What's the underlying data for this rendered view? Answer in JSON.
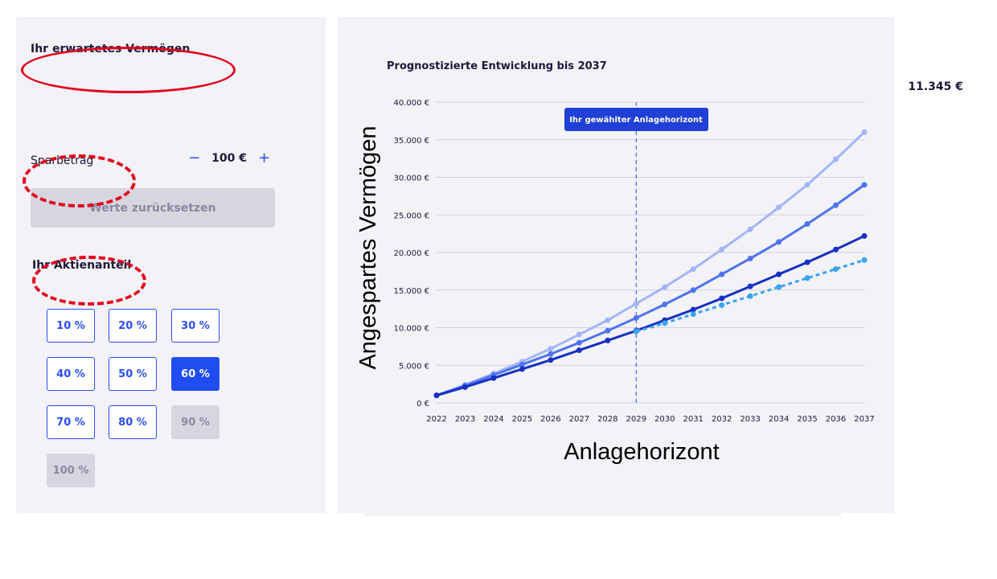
{
  "left": {
    "wealth_heading": "Ihr erwartetes Vermögen",
    "wealth_value": "11.345 €",
    "savings_label": "Sparbetrag",
    "savings_minus": "−",
    "savings_value": "100 €",
    "savings_plus": "+",
    "reset_label": "Werte zurücksetzen",
    "share_heading": "Ihr Aktienanteil",
    "shares": [
      {
        "label": "10 %",
        "state": "normal"
      },
      {
        "label": "20 %",
        "state": "normal"
      },
      {
        "label": "30 %",
        "state": "normal"
      },
      {
        "label": "40 %",
        "state": "normal"
      },
      {
        "label": "50 %",
        "state": "normal"
      },
      {
        "label": "60 %",
        "state": "selected"
      },
      {
        "label": "70 %",
        "state": "normal"
      },
      {
        "label": "80 %",
        "state": "normal"
      },
      {
        "label": "90 %",
        "state": "disabled"
      },
      {
        "label": "100 %",
        "state": "disabled"
      }
    ]
  },
  "colors": {
    "accent": "#1f4df2",
    "annotation_red": "#e3001b",
    "series_high": "#a3b5f7",
    "series_mid": "#4f73ec",
    "series_low": "#1530c2",
    "series_dotted": "#3aa4f0"
  },
  "chart_data": {
    "type": "line",
    "title": "Prognostizierte Entwicklung bis 2037",
    "xlabel": "Anlagehorizont",
    "ylabel": "Angespartes Vermögen",
    "x": [
      "2022",
      "2023",
      "2024",
      "2025",
      "2026",
      "2027",
      "2028",
      "2029",
      "2030",
      "2031",
      "2032",
      "2033",
      "2034",
      "2035",
      "2036",
      "2037"
    ],
    "ylim": [
      0,
      40000
    ],
    "yticks": [
      0,
      5000,
      10000,
      15000,
      20000,
      25000,
      30000,
      35000,
      40000
    ],
    "ytick_labels": [
      "0 €",
      "5.000 €",
      "10.000 €",
      "15.000 €",
      "20.000 €",
      "25.000 €",
      "30.000 €",
      "35.000 €",
      "40.000 €"
    ],
    "grid": true,
    "marker": {
      "x": "2029",
      "label": "Ihr gewählter Anlagehorizont"
    },
    "series": [
      {
        "style": "solid",
        "color": "#a3b5f7",
        "values": [
          1000,
          2400,
          3900,
          5500,
          7200,
          9100,
          11000,
          13200,
          15400,
          17800,
          20400,
          23100,
          26000,
          29000,
          32400,
          36000
        ]
      },
      {
        "style": "solid",
        "color": "#4f73ec",
        "values": [
          1000,
          2300,
          3700,
          5100,
          6500,
          8000,
          9600,
          11300,
          13100,
          15000,
          17100,
          19200,
          21400,
          23800,
          26300,
          29000
        ]
      },
      {
        "style": "solid",
        "color": "#1530c2",
        "values": [
          1000,
          2100,
          3300,
          4500,
          5700,
          7000,
          8300,
          9600,
          11000,
          12400,
          13900,
          15500,
          17100,
          18700,
          20400,
          22200
        ]
      },
      {
        "style": "dotted",
        "color": "#3aa4f0",
        "values": [
          null,
          null,
          null,
          null,
          null,
          null,
          null,
          9500,
          10600,
          11800,
          13000,
          14200,
          15400,
          16600,
          17800,
          19000
        ]
      }
    ]
  }
}
